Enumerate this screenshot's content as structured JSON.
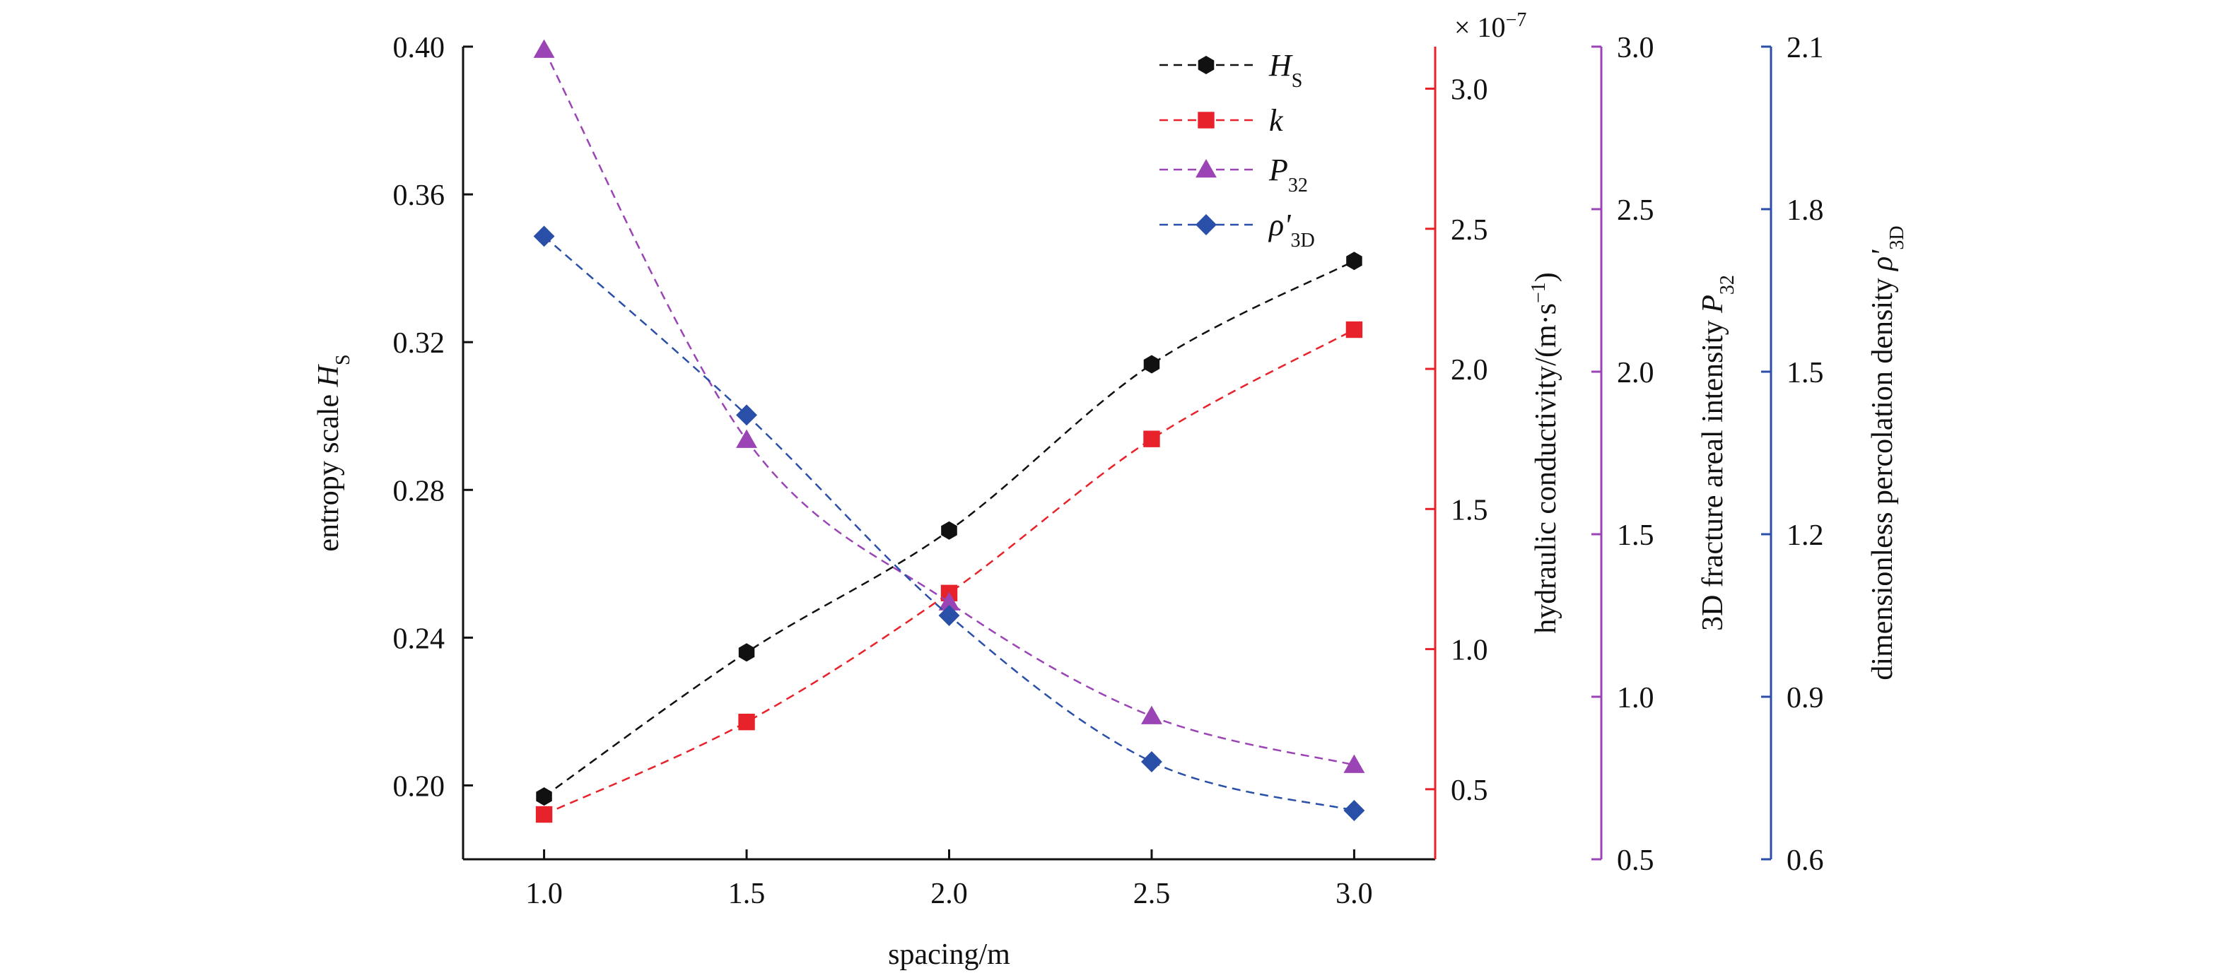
{
  "chart_data": {
    "type": "line",
    "xlabel": "spacing/m",
    "x": [
      1.0,
      1.5,
      2.0,
      2.5,
      3.0
    ],
    "x_tick_labels": [
      "1.0",
      "1.5",
      "2.0",
      "2.5",
      "3.0"
    ],
    "xlim": [
      0.8,
      3.2
    ],
    "axes": [
      {
        "id": "hs",
        "side": "left",
        "label": "entropy scale H",
        "label_sub": "S",
        "ylim": [
          0.18,
          0.4
        ],
        "ticks": [
          0.2,
          0.24,
          0.28,
          0.32,
          0.36,
          0.4
        ],
        "tick_labels": [
          "0.20",
          "0.24",
          "0.28",
          "0.32",
          "0.36",
          "0.40"
        ],
        "color": "#111111"
      },
      {
        "id": "k",
        "side": "right",
        "label": "hydraulic conductivity/(m·s",
        "label_sup": "−1",
        "label_end": ")",
        "multiplier": "× 10",
        "multiplier_exp": "−7",
        "ylim": [
          0.25,
          3.15
        ],
        "ticks": [
          0.5,
          1.0,
          1.5,
          2.0,
          2.5,
          3.0
        ],
        "tick_labels": [
          "0.5",
          "1.0",
          "1.5",
          "2.0",
          "2.5",
          "3.0"
        ],
        "color": "#e8222a"
      },
      {
        "id": "p32",
        "side": "right",
        "label": "3D fracture areal intensity P",
        "label_sub": "32",
        "ylim": [
          0.5,
          3.0
        ],
        "ticks": [
          0.5,
          1.0,
          1.5,
          2.0,
          2.5,
          3.0
        ],
        "tick_labels": [
          "0.5",
          "1.0",
          "1.5",
          "2.0",
          "2.5",
          "3.0"
        ],
        "color": "#9b44b5"
      },
      {
        "id": "rho",
        "side": "right",
        "label": "dimensionless percolation density ρ'",
        "label_sub": "3D",
        "ylim": [
          0.6,
          2.1
        ],
        "ticks": [
          0.6,
          0.9,
          1.2,
          1.5,
          1.8,
          2.1
        ],
        "tick_labels": [
          "0.6",
          "0.9",
          "1.2",
          "1.5",
          "1.8",
          "2.1"
        ],
        "color": "#2a4fa8"
      }
    ],
    "series": [
      {
        "name": "H",
        "name_sub": "S",
        "axis": "hs",
        "marker": "hexagon",
        "color": "#111111",
        "values": [
          0.197,
          0.236,
          0.269,
          0.314,
          0.342
        ]
      },
      {
        "name": "k",
        "name_sub": "",
        "axis": "k",
        "marker": "square",
        "color": "#e8222a",
        "values": [
          0.41,
          0.74,
          1.2,
          1.75,
          2.14
        ]
      },
      {
        "name": "P",
        "name_sub": "32",
        "axis": "p32",
        "marker": "triangle",
        "color": "#9b44b5",
        "values": [
          2.99,
          1.79,
          1.29,
          0.94,
          0.79
        ]
      },
      {
        "name": "ρ'",
        "name_sub": "3D",
        "axis": "rho",
        "marker": "diamond",
        "color": "#2a4fa8",
        "values": [
          1.75,
          1.42,
          1.05,
          0.78,
          0.69
        ]
      }
    ],
    "legend_position": "top-right",
    "grid": false
  }
}
